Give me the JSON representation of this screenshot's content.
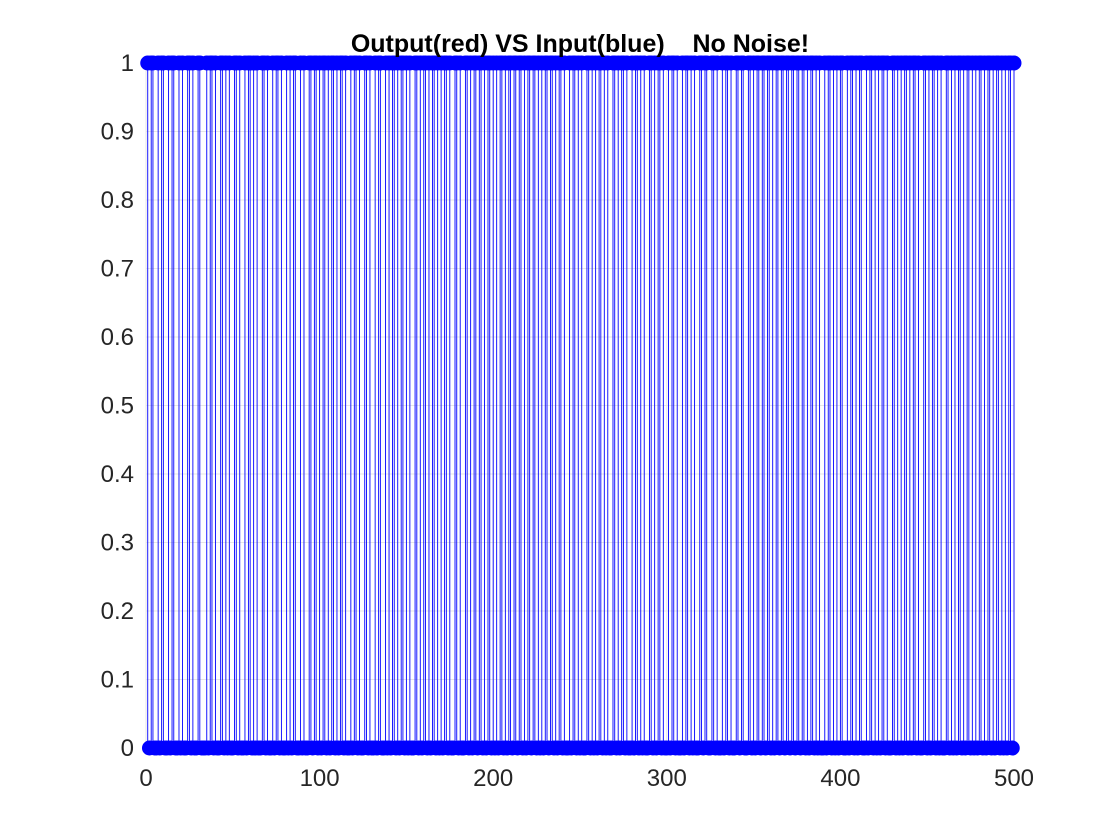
{
  "chart_data": {
    "type": "stem",
    "title": "Output(red) VS Input(blue)    No Noise!",
    "xlabel": "",
    "ylabel": "",
    "xlim": [
      0,
      500
    ],
    "ylim": [
      0,
      1
    ],
    "x_ticks": [
      "0",
      "100",
      "200",
      "300",
      "400",
      "500"
    ],
    "y_ticks": [
      "0",
      "0.1",
      "0.2",
      "0.3",
      "0.4",
      "0.5",
      "0.6",
      "0.7",
      "0.8",
      "0.9",
      "1"
    ],
    "grid": true,
    "series": [
      {
        "color": "#0000ff",
        "marker": "filled-circle",
        "x_start": 1,
        "x_end": 500,
        "values": [
          1,
          0,
          1,
          1,
          0,
          0,
          1,
          0,
          1,
          1,
          0,
          0,
          1,
          0,
          1,
          1,
          0,
          0,
          1,
          0,
          1,
          0,
          0,
          1,
          1,
          0,
          1,
          0,
          0,
          1,
          1,
          0,
          0,
          0,
          1,
          0,
          1,
          1,
          0,
          1,
          0,
          0,
          1,
          1,
          0,
          1,
          0,
          1,
          0,
          0,
          1,
          1,
          0,
          1,
          0,
          0,
          1,
          0,
          1,
          1,
          0,
          1,
          0,
          1,
          0,
          0,
          1,
          1,
          0,
          1,
          0,
          0,
          1,
          0,
          1,
          1,
          0,
          1,
          0,
          0,
          1,
          0,
          1,
          0,
          1,
          1,
          0,
          0,
          1,
          0,
          1,
          0,
          0,
          1,
          1,
          0,
          1,
          1,
          0,
          1,
          0,
          1,
          1,
          0,
          1,
          0,
          1,
          1,
          0,
          1,
          0,
          1,
          1,
          0,
          1,
          0,
          0,
          1,
          0,
          1,
          1,
          0,
          1,
          0,
          0,
          1,
          1,
          0,
          1,
          0,
          0,
          1,
          0,
          1,
          1,
          0,
          0,
          1,
          0,
          1,
          0,
          1,
          1,
          0,
          1,
          0,
          1,
          1,
          0,
          1,
          0,
          1,
          0,
          0,
          1,
          1,
          0,
          1,
          0,
          1,
          1,
          0,
          1,
          0,
          1,
          1,
          0,
          1,
          0,
          1,
          0,
          1,
          1,
          0,
          1,
          0,
          0,
          1,
          1,
          0,
          1,
          0,
          0,
          1,
          1,
          0,
          1,
          0,
          1,
          1,
          0,
          1,
          1,
          0,
          1,
          0,
          1,
          1,
          0,
          1,
          0,
          1,
          0,
          1,
          1,
          0,
          1,
          0,
          1,
          1,
          0,
          1,
          1,
          0,
          1,
          1,
          0,
          1,
          0,
          1,
          1,
          0,
          1,
          1,
          0,
          1,
          0,
          1,
          0,
          1,
          1,
          0,
          1,
          1,
          0,
          1,
          0,
          1,
          1,
          0,
          1,
          0,
          0,
          1,
          0,
          1,
          1,
          0,
          1,
          0,
          1,
          0,
          0,
          1,
          1,
          0,
          1,
          0,
          1,
          0,
          1,
          1,
          0,
          1,
          0,
          1,
          0,
          0,
          1,
          1,
          0,
          1,
          0,
          1,
          1,
          0,
          1,
          0,
          0,
          1,
          0,
          1,
          1,
          0,
          1,
          0,
          1,
          0,
          0,
          1,
          1,
          0,
          1,
          0,
          1,
          1,
          0,
          1,
          0,
          0,
          1,
          0,
          1,
          1,
          0,
          1,
          0,
          0,
          1,
          0,
          1,
          1,
          0,
          1,
          0,
          1,
          0,
          0,
          1,
          1,
          0,
          1,
          1,
          0,
          0,
          1,
          1,
          0,
          1,
          0,
          0,
          1,
          0,
          1,
          1,
          0,
          1,
          0,
          0,
          1,
          1,
          0,
          1,
          1,
          0,
          0,
          1,
          1,
          0,
          1,
          0,
          1,
          1,
          0,
          1,
          1,
          0,
          1,
          1,
          0,
          1,
          0,
          1,
          1,
          0,
          1,
          1,
          0,
          1,
          1,
          0,
          1,
          1,
          0,
          1,
          1,
          0,
          1,
          1,
          0,
          1,
          0,
          1,
          1,
          0,
          1,
          0,
          1,
          0,
          0,
          1,
          0,
          1,
          1,
          0,
          1,
          0,
          1,
          0,
          1,
          1,
          0,
          0,
          1,
          0,
          1,
          1,
          0,
          1,
          0,
          1,
          1,
          0,
          0,
          1,
          0,
          1,
          1,
          0,
          1,
          0,
          1,
          0,
          1,
          1,
          0,
          1,
          0,
          0,
          1,
          1,
          0,
          1,
          0,
          1,
          0,
          1,
          1,
          0,
          1,
          0,
          1,
          1,
          0,
          1,
          0,
          0,
          1,
          1,
          0,
          1,
          0,
          1,
          1,
          0,
          1,
          0,
          1,
          0,
          0,
          1,
          1,
          0,
          1,
          0,
          1,
          0,
          1,
          1,
          0,
          1,
          0,
          1,
          1,
          0,
          1,
          0,
          1,
          0,
          1,
          1,
          0,
          1,
          0,
          1,
          1,
          0,
          1,
          0,
          1,
          1,
          0,
          1,
          0,
          1,
          0,
          1,
          1,
          0,
          1
        ]
      }
    ]
  }
}
